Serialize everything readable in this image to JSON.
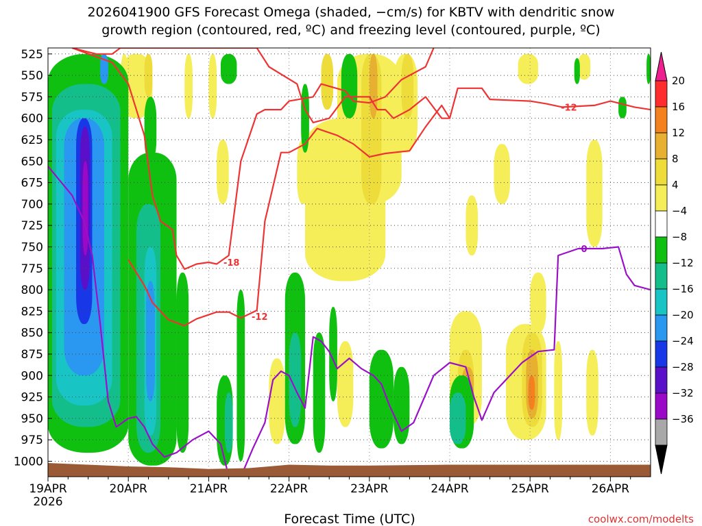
{
  "chart_data": {
    "type": "heatmap",
    "title_lines": [
      "2026041900 GFS Forecast Omega (shaded, −cm/s) for KBTV with dendritic snow",
      "growth region (contoured, red, ºC) and freezing level (contoured, purple, ºC)"
    ],
    "xlabel": "Forecast Time (UTC)",
    "ylabel": "",
    "x_ticks": [
      "19APR",
      "20APR",
      "21APR",
      "22APR",
      "23APR",
      "24APR",
      "25APR",
      "26APR"
    ],
    "x_tick_days": [
      0,
      1,
      2,
      3,
      4,
      5,
      6,
      7
    ],
    "x_first_tick_year": "2026",
    "xlim_days": [
      0,
      7.5
    ],
    "y_ticks": [
      525,
      550,
      575,
      600,
      625,
      650,
      675,
      700,
      725,
      750,
      775,
      800,
      825,
      850,
      875,
      900,
      925,
      950,
      975,
      1000
    ],
    "ylim_hpa": [
      1018,
      518
    ],
    "grid": true,
    "colorbar": {
      "labels": [
        "20",
        "16",
        "12",
        "8",
        "4",
        "−4",
        "−8",
        "−12",
        "−16",
        "−20",
        "−24",
        "−28",
        "−32",
        "−36"
      ],
      "colors": [
        "#ff2d2d",
        "#f4801e",
        "#e8b030",
        "#eedc3a",
        "#f5ee58",
        "#ffffff",
        "#10c010",
        "#14be8a",
        "#18c4c4",
        "#2a98f0",
        "#1838e8",
        "#5a10c8",
        "#9a08c8",
        "#a8a8a8"
      ],
      "top_arrow_color": "#ee2090",
      "bottom_arrow_color": "#000000"
    },
    "ground_color": "#9a5a35",
    "omega_regions": [
      {
        "name": "4",
        "color": "#f5ee58",
        "blobs": [
          [
            3.2,
            4.2,
            600,
            790
          ],
          [
            3.6,
            4.4,
            525,
            700
          ],
          [
            4.3,
            4.6,
            525,
            640
          ],
          [
            0.9,
            1.3,
            525,
            600
          ],
          [
            1.7,
            1.8,
            525,
            600
          ],
          [
            2.0,
            2.1,
            525,
            600
          ],
          [
            3.1,
            3.25,
            625,
            700
          ],
          [
            2.1,
            2.25,
            625,
            700
          ],
          [
            5.85,
            6.1,
            525,
            560
          ],
          [
            6.6,
            6.75,
            525,
            555
          ],
          [
            5.0,
            5.4,
            825,
            960
          ],
          [
            5.2,
            5.35,
            690,
            760
          ],
          [
            5.55,
            5.75,
            630,
            700
          ],
          [
            6.0,
            6.2,
            780,
            850
          ],
          [
            5.7,
            6.2,
            840,
            975
          ],
          [
            6.3,
            6.4,
            860,
            975
          ],
          [
            6.7,
            6.85,
            870,
            970
          ],
          [
            6.7,
            6.9,
            625,
            750
          ],
          [
            2.75,
            2.95,
            880,
            980
          ],
          [
            3.6,
            3.8,
            860,
            960
          ],
          [
            0.9,
            1.0,
            525,
            700
          ]
        ]
      },
      {
        "name": "8",
        "color": "#eedc3a",
        "blobs": [
          [
            3.9,
            4.15,
            525,
            700
          ],
          [
            3.4,
            3.55,
            525,
            590
          ],
          [
            5.1,
            5.3,
            870,
            960
          ],
          [
            5.9,
            6.15,
            850,
            960
          ],
          [
            4.4,
            4.55,
            525,
            600
          ],
          [
            1.2,
            1.3,
            525,
            575
          ]
        ]
      },
      {
        "name": "12",
        "color": "#e8b030",
        "blobs": [
          [
            4.0,
            4.1,
            525,
            600
          ],
          [
            5.15,
            5.3,
            890,
            940
          ],
          [
            5.95,
            6.1,
            870,
            950
          ]
        ]
      },
      {
        "name": "16",
        "color": "#f4801e",
        "blobs": [
          [
            5.98,
            6.06,
            900,
            940
          ]
        ]
      },
      {
        "name": "−4",
        "color": "#10c010",
        "blobs": [
          [
            0.0,
            1.0,
            525,
            990
          ],
          [
            1.0,
            1.6,
            640,
            1005
          ],
          [
            1.6,
            1.75,
            780,
            990
          ],
          [
            2.1,
            2.3,
            900,
            1005
          ],
          [
            2.35,
            2.45,
            800,
            1000
          ],
          [
            2.95,
            3.2,
            780,
            980
          ],
          [
            3.3,
            3.45,
            850,
            990
          ],
          [
            3.5,
            3.6,
            820,
            930
          ],
          [
            4.0,
            4.3,
            870,
            985
          ],
          [
            4.3,
            4.5,
            890,
            980
          ],
          [
            5.0,
            5.3,
            900,
            985
          ],
          [
            2.15,
            2.35,
            525,
            560
          ],
          [
            6.55,
            6.62,
            530,
            560
          ],
          [
            7.1,
            7.2,
            575,
            600
          ],
          [
            7.45,
            7.5,
            525,
            560
          ],
          [
            3.65,
            3.85,
            525,
            600
          ],
          [
            3.15,
            3.25,
            560,
            640
          ],
          [
            1.2,
            1.35,
            575,
            650
          ]
        ]
      },
      {
        "name": "−8",
        "color": "#14be8a",
        "blobs": [
          [
            0.05,
            0.9,
            560,
            960
          ],
          [
            1.1,
            1.4,
            700,
            990
          ],
          [
            2.2,
            2.3,
            920,
            990
          ],
          [
            3.0,
            3.15,
            850,
            960
          ],
          [
            5.0,
            5.2,
            920,
            980
          ]
        ]
      },
      {
        "name": "−12",
        "color": "#18c4c4",
        "blobs": [
          [
            0.1,
            0.8,
            590,
            935
          ],
          [
            1.2,
            1.35,
            750,
            970
          ]
        ]
      },
      {
        "name": "−16",
        "color": "#2a98f0",
        "blobs": [
          [
            0.2,
            0.7,
            600,
            900
          ],
          [
            1.22,
            1.33,
            790,
            930
          ],
          [
            0.65,
            0.75,
            525,
            560
          ]
        ]
      },
      {
        "name": "−20",
        "color": "#1838e8",
        "blobs": [
          [
            0.35,
            0.55,
            600,
            840
          ]
        ]
      },
      {
        "name": "−24",
        "color": "#5a10c8",
        "blobs": [
          [
            0.4,
            0.52,
            610,
            800
          ]
        ]
      },
      {
        "name": "−28",
        "color": "#9a08c8",
        "blobs": [
          [
            0.43,
            0.5,
            650,
            760
          ]
        ]
      }
    ],
    "contours": [
      {
        "name": "-12 upper",
        "color": "#ee3333",
        "label": "-12",
        "points": [
          [
            0.3,
            518
          ],
          [
            0.6,
            525
          ],
          [
            0.8,
            525
          ],
          [
            0.9,
            518
          ],
          [
            2.6,
            518
          ],
          [
            2.75,
            540
          ],
          [
            3.1,
            560
          ],
          [
            3.2,
            590
          ],
          [
            3.3,
            605
          ],
          [
            3.5,
            600
          ],
          [
            3.7,
            575
          ],
          [
            4.0,
            575
          ],
          [
            4.1,
            590
          ],
          [
            4.2,
            590
          ],
          [
            4.3,
            600
          ],
          [
            4.5,
            590
          ],
          [
            4.7,
            575
          ],
          [
            4.9,
            600
          ],
          [
            5.0,
            600
          ],
          [
            5.1,
            565
          ],
          [
            5.4,
            565
          ],
          [
            5.5,
            578
          ],
          [
            6.0,
            580
          ],
          [
            6.2,
            583
          ],
          [
            6.4,
            587
          ],
          [
            6.8,
            585
          ],
          [
            7.0,
            580
          ],
          [
            7.3,
            587
          ],
          [
            7.5,
            590
          ]
        ],
        "label_at": [
          6.35,
          587
        ]
      },
      {
        "name": "-18 upper",
        "color": "#ee3333",
        "label": "-18",
        "points": [
          [
            0.3,
            518
          ],
          [
            0.8,
            535
          ],
          [
            1.0,
            560
          ],
          [
            1.2,
            620
          ],
          [
            1.3,
            690
          ],
          [
            1.4,
            720
          ],
          [
            1.55,
            730
          ],
          [
            1.6,
            760
          ],
          [
            1.7,
            776
          ],
          [
            1.85,
            770
          ],
          [
            2.0,
            768
          ],
          [
            2.1,
            770
          ],
          [
            2.25,
            760
          ],
          [
            2.4,
            650
          ],
          [
            2.6,
            595
          ],
          [
            2.7,
            590
          ],
          [
            2.9,
            590
          ],
          [
            3.0,
            580
          ],
          [
            3.3,
            575
          ],
          [
            3.4,
            560
          ],
          [
            3.7,
            568
          ],
          [
            3.8,
            580
          ],
          [
            4.0,
            582
          ],
          [
            4.2,
            575
          ],
          [
            4.4,
            555
          ],
          [
            4.7,
            540
          ],
          [
            4.8,
            518
          ]
        ],
        "label_at": [
          2.15,
          768
        ]
      },
      {
        "name": "-12 lower",
        "color": "#ee3333",
        "label": "-12",
        "points": [
          [
            1.0,
            765
          ],
          [
            1.2,
            795
          ],
          [
            1.3,
            815
          ],
          [
            1.5,
            835
          ],
          [
            1.7,
            842
          ],
          [
            1.85,
            834
          ],
          [
            2.1,
            826
          ],
          [
            2.25,
            826
          ],
          [
            2.4,
            833
          ],
          [
            2.6,
            824
          ],
          [
            2.7,
            720
          ],
          [
            2.8,
            680
          ],
          [
            2.9,
            640
          ],
          [
            3.0,
            640
          ],
          [
            3.2,
            630
          ],
          [
            3.35,
            612
          ],
          [
            3.6,
            620
          ],
          [
            3.8,
            630
          ],
          [
            4.0,
            645
          ],
          [
            4.2,
            641
          ],
          [
            4.5,
            638
          ],
          [
            4.7,
            610
          ],
          [
            4.9,
            585
          ],
          [
            5.0,
            600
          ]
        ],
        "label_at": [
          2.5,
          831
        ]
      },
      {
        "name": "freezing level",
        "color": "#9a10c8",
        "label": "0",
        "points": [
          [
            0.0,
            656
          ],
          [
            0.3,
            690
          ],
          [
            0.35,
            700
          ],
          [
            0.45,
            720
          ],
          [
            0.55,
            760
          ],
          [
            0.65,
            840
          ],
          [
            0.75,
            930
          ],
          [
            0.85,
            960
          ],
          [
            1.0,
            950
          ],
          [
            1.1,
            948
          ],
          [
            1.2,
            960
          ],
          [
            1.3,
            980
          ],
          [
            1.45,
            995
          ],
          [
            1.6,
            990
          ],
          [
            1.8,
            975
          ],
          [
            2.0,
            965
          ],
          [
            2.15,
            980
          ],
          [
            2.25,
            1018
          ],
          [
            2.4,
            1018
          ],
          [
            2.55,
            985
          ],
          [
            2.7,
            955
          ],
          [
            2.8,
            905
          ],
          [
            2.9,
            895
          ],
          [
            3.0,
            900
          ],
          [
            3.1,
            920
          ],
          [
            3.2,
            938
          ],
          [
            3.3,
            855
          ],
          [
            3.4,
            860
          ],
          [
            3.5,
            872
          ],
          [
            3.6,
            892
          ],
          [
            3.75,
            880
          ],
          [
            3.9,
            892
          ],
          [
            4.05,
            900
          ],
          [
            4.15,
            910
          ],
          [
            4.25,
            935
          ],
          [
            4.4,
            965
          ],
          [
            4.55,
            955
          ],
          [
            4.8,
            900
          ],
          [
            5.0,
            885
          ],
          [
            5.2,
            890
          ],
          [
            5.3,
            925
          ],
          [
            5.4,
            952
          ],
          [
            5.55,
            920
          ],
          [
            5.75,
            900
          ],
          [
            5.9,
            885
          ],
          [
            6.1,
            872
          ],
          [
            6.3,
            870
          ],
          [
            6.35,
            760
          ],
          [
            6.6,
            752
          ],
          [
            6.9,
            752
          ],
          [
            7.1,
            750
          ],
          [
            7.2,
            782
          ],
          [
            7.3,
            795
          ],
          [
            7.5,
            800
          ]
        ],
        "label_at": [
          6.6,
          752
        ]
      }
    ]
  },
  "credit": "coolwx.com/modelts"
}
